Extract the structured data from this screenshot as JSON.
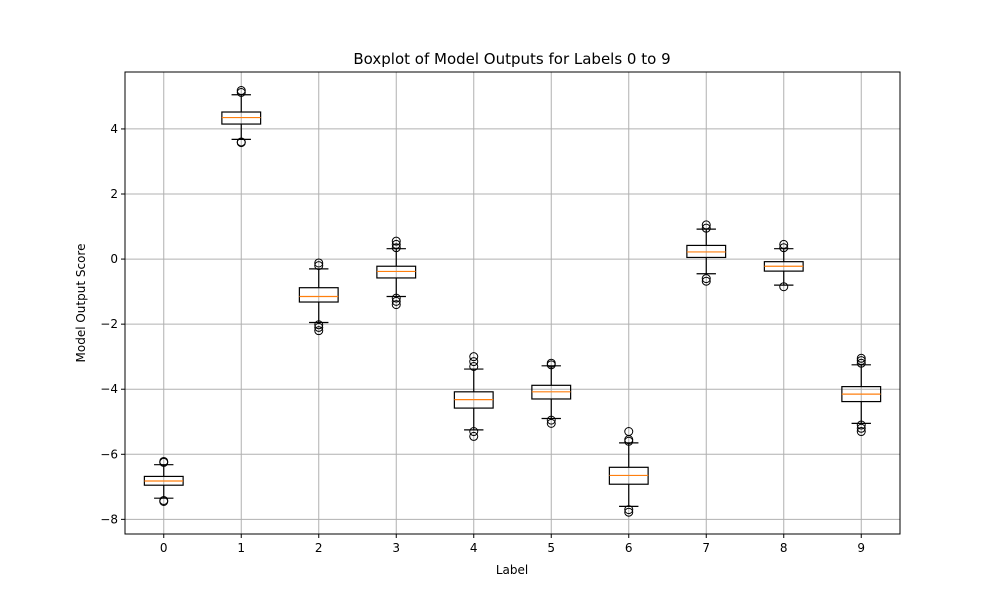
{
  "chart_data": {
    "type": "boxplot",
    "title": "Boxplot of Model Outputs for Labels 0 to 9",
    "xlabel": "Label",
    "ylabel": "Model Output Score",
    "ylim": [
      -8.45,
      5.75
    ],
    "yticks": [
      -8,
      -6,
      -4,
      -2,
      0,
      2,
      4
    ],
    "ytick_labels": [
      "−8",
      "−6",
      "−4",
      "−2",
      "0",
      "2",
      "4"
    ],
    "grid": true,
    "categories": [
      "0",
      "1",
      "2",
      "3",
      "4",
      "5",
      "6",
      "7",
      "8",
      "9"
    ],
    "boxes": [
      {
        "label": "0",
        "whisker_low": -7.35,
        "q1": -6.95,
        "median": -6.82,
        "q3": -6.68,
        "whisker_high": -6.32,
        "outliers": [
          -7.42,
          -7.45,
          -6.25,
          -6.22
        ]
      },
      {
        "label": "1",
        "whisker_low": 3.68,
        "q1": 4.15,
        "median": 4.35,
        "q3": 4.52,
        "whisker_high": 5.05,
        "outliers": [
          3.6,
          3.58,
          5.12,
          5.18
        ]
      },
      {
        "label": "2",
        "whisker_low": -1.95,
        "q1": -1.32,
        "median": -1.15,
        "q3": -0.88,
        "whisker_high": -0.3,
        "outliers": [
          -2.02,
          -2.1,
          -2.2,
          -0.2,
          -0.12
        ]
      },
      {
        "label": "3",
        "whisker_low": -1.15,
        "q1": -0.58,
        "median": -0.38,
        "q3": -0.22,
        "whisker_high": 0.32,
        "outliers": [
          -1.2,
          -1.3,
          -1.4,
          0.35,
          0.45,
          0.55
        ]
      },
      {
        "label": "4",
        "whisker_low": -5.25,
        "q1": -4.58,
        "median": -4.32,
        "q3": -4.08,
        "whisker_high": -3.38,
        "outliers": [
          -5.3,
          -5.45,
          -3.3,
          -3.15,
          -3.0
        ]
      },
      {
        "label": "5",
        "whisker_low": -4.9,
        "q1": -4.3,
        "median": -4.08,
        "q3": -3.88,
        "whisker_high": -3.28,
        "outliers": [
          -4.95,
          -5.05,
          -3.25,
          -3.2
        ]
      },
      {
        "label": "6",
        "whisker_low": -7.6,
        "q1": -6.92,
        "median": -6.65,
        "q3": -6.4,
        "whisker_high": -5.65,
        "outliers": [
          -7.7,
          -7.78,
          -5.6,
          -5.55,
          -5.3
        ]
      },
      {
        "label": "7",
        "whisker_low": -0.45,
        "q1": 0.05,
        "median": 0.22,
        "q3": 0.42,
        "whisker_high": 0.92,
        "outliers": [
          -0.6,
          -0.68,
          0.95,
          1.05
        ]
      },
      {
        "label": "8",
        "whisker_low": -0.8,
        "q1": -0.37,
        "median": -0.22,
        "q3": -0.08,
        "whisker_high": 0.32,
        "outliers": [
          -0.85,
          0.35,
          0.45
        ]
      },
      {
        "label": "9",
        "whisker_low": -5.05,
        "q1": -4.38,
        "median": -4.15,
        "q3": -3.92,
        "whisker_high": -3.25,
        "outliers": [
          -5.1,
          -5.2,
          -5.3,
          -3.2,
          -3.12,
          -3.05
        ]
      }
    ],
    "colors": {
      "box": "#000000",
      "median": "#ff7f0e",
      "grid": "#b0b0b0",
      "outlier": "#000000"
    }
  }
}
